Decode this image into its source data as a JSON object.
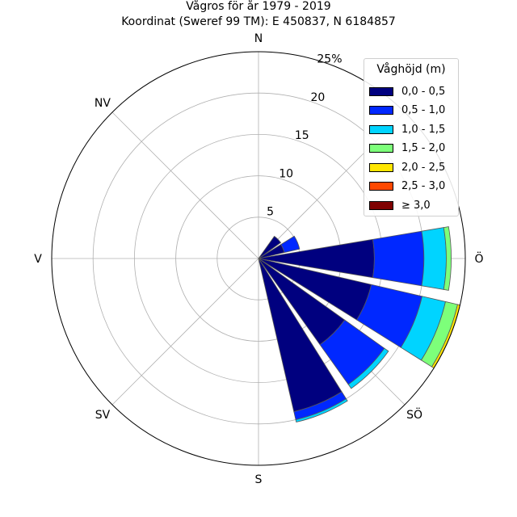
{
  "title": "Vågros för år 1979 - 2019",
  "subtitle": "Koordinat (Sweref 99 TM): E 450837, N 6184857",
  "chart_data": {
    "type": "windrose",
    "rmax": 25,
    "radial_ticks": [
      5,
      10,
      15,
      20
    ],
    "radial_max_label": "25%",
    "direction_labels": [
      "N",
      "NV",
      "V",
      "SV",
      "S",
      "SÖ",
      "Ö"
    ],
    "legend": {
      "title": "Våghöjd (m)",
      "entries": [
        {
          "label": "0,0 - 0,5",
          "color": "#00007f"
        },
        {
          "label": "0,5 - 1,0",
          "color": "#0028ff"
        },
        {
          "label": "1,0 - 1,5",
          "color": "#00d4ff"
        },
        {
          "label": "1,5 - 2,0",
          "color": "#7dff7a"
        },
        {
          "label": "2,0 - 2,5",
          "color": "#ffe600"
        },
        {
          "label": "2,5 - 3,0",
          "color": "#ff4800"
        },
        {
          "label": "≥ 3,0",
          "color": "#7f0000"
        }
      ]
    },
    "sectors": [
      {
        "direction_deg": 45,
        "cumulative": [
          3.3
        ]
      },
      {
        "direction_deg": 67.5,
        "cumulative": [
          3.2,
          5.1
        ]
      },
      {
        "direction_deg": 90,
        "cumulative": [
          14.0,
          20.0,
          22.7,
          23.3
        ]
      },
      {
        "direction_deg": 112.5,
        "cumulative": [
          14.0,
          20.3,
          23.2,
          24.7,
          25.0
        ]
      },
      {
        "direction_deg": 135,
        "cumulative": [
          12.8,
          18.7,
          19.3
        ]
      },
      {
        "direction_deg": 157.5,
        "cumulative": [
          19.0,
          20.0,
          20.3
        ]
      }
    ]
  }
}
